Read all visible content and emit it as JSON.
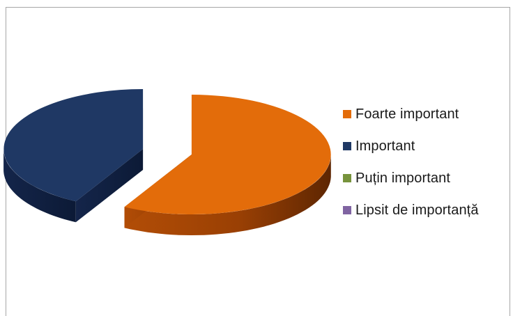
{
  "chart_data": {
    "type": "pie",
    "title": "",
    "categories": [
      "Foarte important",
      "Important",
      "Puțin important",
      "Lipsit de importanță"
    ],
    "values": [
      58,
      42,
      0,
      0
    ],
    "colors": [
      "#e36c0a",
      "#1f3864",
      "#77933c",
      "#8064a2"
    ],
    "legend_position": "right",
    "style": "3d-exploded"
  }
}
